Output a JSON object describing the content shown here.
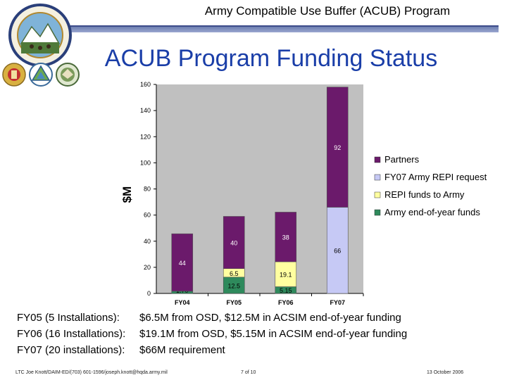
{
  "header": {
    "title": "Army Compatible Use Buffer (ACUB) Program"
  },
  "logos": [
    "seal-icon",
    "army-emblem-icon",
    "triangle-emblem-icon",
    "eagle-emblem-icon"
  ],
  "slide_title": "ACUB Program Funding Status",
  "chart_data": {
    "type": "bar",
    "stacked": true,
    "categories": [
      "FY04",
      "FY05",
      "FY06",
      "FY07"
    ],
    "ylabel": "$M",
    "ylim": [
      0,
      160
    ],
    "yticks": [
      0,
      20,
      40,
      60,
      80,
      100,
      120,
      140,
      160
    ],
    "grid": false,
    "legend_position": "right",
    "series": [
      {
        "name": "Army end-of-year funds",
        "color": "#2e8a5c",
        "values": [
          1.7,
          12.5,
          5.15,
          0
        ],
        "labels": [
          "1.70",
          "12.5",
          "5.15",
          ""
        ]
      },
      {
        "name": "REPI funds to Army",
        "color": "#ffffa0",
        "values": [
          0,
          6.5,
          19.1,
          0
        ],
        "labels": [
          "",
          "6.5",
          "19.1",
          ""
        ]
      },
      {
        "name": "FY07 Army REPI request",
        "color": "#c6c9f5",
        "values": [
          0,
          0,
          0,
          66
        ],
        "labels": [
          "",
          "",
          "",
          "66"
        ]
      },
      {
        "name": "Partners",
        "color": "#6b1a6b",
        "values": [
          44,
          40,
          38,
          92
        ],
        "labels": [
          "44",
          "40",
          "38",
          "92"
        ]
      }
    ],
    "legend_order": [
      "Partners",
      "FY07 Army REPI request",
      "REPI funds to Army",
      "Army end-of-year funds"
    ],
    "plot_bg": "#c0c0c0"
  },
  "notes": [
    {
      "label": "FY05 (5 Installations):",
      "text": "$6.5M from OSD, $12.5M in ACSIM end-of-year funding"
    },
    {
      "label": "FY06 (16 Installations):",
      "text": "$19.1M from OSD, $5.15M in ACSIM end-of-year funding"
    },
    {
      "label": "FY07 (20 installations):",
      "text": "$66M requirement"
    }
  ],
  "footer": {
    "contact": "LTC Joe Knott/DAIM-ED/(703) 601-1596/joseph.knott@hqda.army.mil",
    "page": "7 of 10",
    "date": "13 October 2006"
  }
}
